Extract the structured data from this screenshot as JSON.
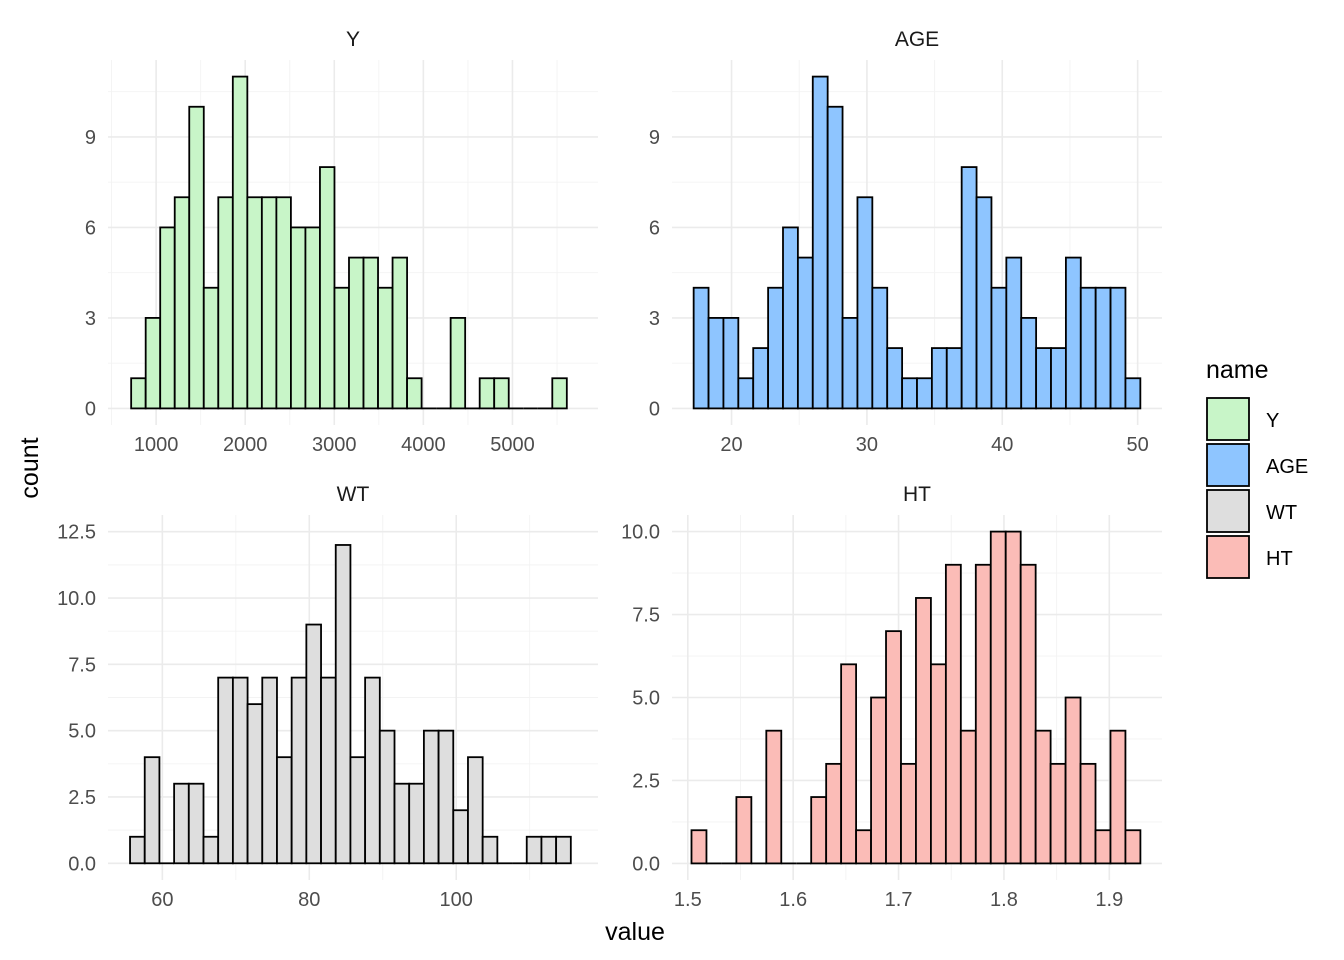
{
  "chart_data": {
    "type": "bar",
    "subtype": "faceted histogram",
    "xlabel": "value",
    "ylabel": "count",
    "legend": {
      "title": "name",
      "placement": "right",
      "entries": [
        {
          "label": "Y",
          "color": "#c8f5c8"
        },
        {
          "label": "AGE",
          "color": "#8ec5ff"
        },
        {
          "label": "WT",
          "color": "#dedede"
        },
        {
          "label": "HT",
          "color": "#fbbcb7"
        }
      ]
    },
    "facets": [
      {
        "title": "Y",
        "color": "#c8f5c8",
        "xlim": [
          460,
          5960
        ],
        "ylim": [
          -0.55,
          11.55
        ],
        "xticks": [
          1000,
          2000,
          3000,
          4000,
          5000
        ],
        "xtick_labels": [
          "1000",
          "2000",
          "3000",
          "4000",
          "5000"
        ],
        "yticks": [
          0,
          3,
          6,
          9
        ],
        "ytick_labels": [
          "0",
          "3",
          "6",
          "9"
        ],
        "bin_start": 720,
        "bin_width": 163,
        "counts": [
          1,
          3,
          6,
          7,
          10,
          4,
          7,
          11,
          7,
          7,
          7,
          6,
          6,
          8,
          4,
          5,
          5,
          4,
          5,
          1,
          0,
          0,
          3,
          0,
          1,
          1,
          0,
          0,
          0,
          1
        ]
      },
      {
        "title": "AGE",
        "color": "#8ec5ff",
        "xlim": [
          15.6,
          51.8
        ],
        "ylim": [
          -0.55,
          11.55
        ],
        "xticks": [
          20,
          30,
          40,
          50
        ],
        "xtick_labels": [
          "20",
          "30",
          "40",
          "50"
        ],
        "yticks": [
          0,
          3,
          6,
          9
        ],
        "ytick_labels": [
          "0",
          "3",
          "6",
          "9"
        ],
        "bin_start": 17.2,
        "bin_width": 1.1,
        "counts": [
          4,
          3,
          3,
          1,
          2,
          4,
          6,
          5,
          11,
          10,
          3,
          7,
          4,
          2,
          1,
          1,
          2,
          2,
          8,
          7,
          4,
          5,
          3,
          2,
          2,
          5,
          4,
          4,
          4,
          1
        ]
      },
      {
        "title": "WT",
        "color": "#dedede",
        "xlim": [
          52.6,
          119.3
        ],
        "ylim": [
          -0.63,
          13.13
        ],
        "xticks": [
          60,
          80,
          100
        ],
        "xtick_labels": [
          "60",
          "80",
          "100"
        ],
        "yticks": [
          0,
          2.5,
          5,
          7.5,
          10,
          12.5
        ],
        "ytick_labels": [
          "0.0",
          "2.5",
          "5.0",
          "7.5",
          "10.0",
          "12.5"
        ],
        "bin_start": 55.6,
        "bin_width": 2,
        "counts": [
          1,
          4,
          0,
          3,
          3,
          1,
          7,
          7,
          6,
          7,
          4,
          7,
          9,
          7,
          12,
          4,
          7,
          5,
          3,
          3,
          5,
          5,
          2,
          4,
          1,
          0,
          0,
          1,
          1,
          1
        ]
      },
      {
        "title": "HT",
        "color": "#fbbcb7",
        "xlim": [
          1.485,
          1.95
        ],
        "ylim": [
          -0.5,
          10.5
        ],
        "xticks": [
          1.5,
          1.6,
          1.7,
          1.8,
          1.9
        ],
        "xtick_labels": [
          "1.5",
          "1.6",
          "1.7",
          "1.8",
          "1.9"
        ],
        "yticks": [
          0,
          2.5,
          5,
          7.5,
          10
        ],
        "ytick_labels": [
          "0.0",
          "2.5",
          "5.0",
          "7.5",
          "10.0"
        ],
        "bin_start": 1.5035,
        "bin_width": 0.0142,
        "counts": [
          1,
          0,
          0,
          2,
          0,
          4,
          0,
          0,
          2,
          3,
          6,
          1,
          5,
          7,
          3,
          8,
          6,
          9,
          4,
          9,
          10,
          10,
          9,
          4,
          3,
          5,
          3,
          1,
          4,
          1
        ]
      }
    ]
  }
}
